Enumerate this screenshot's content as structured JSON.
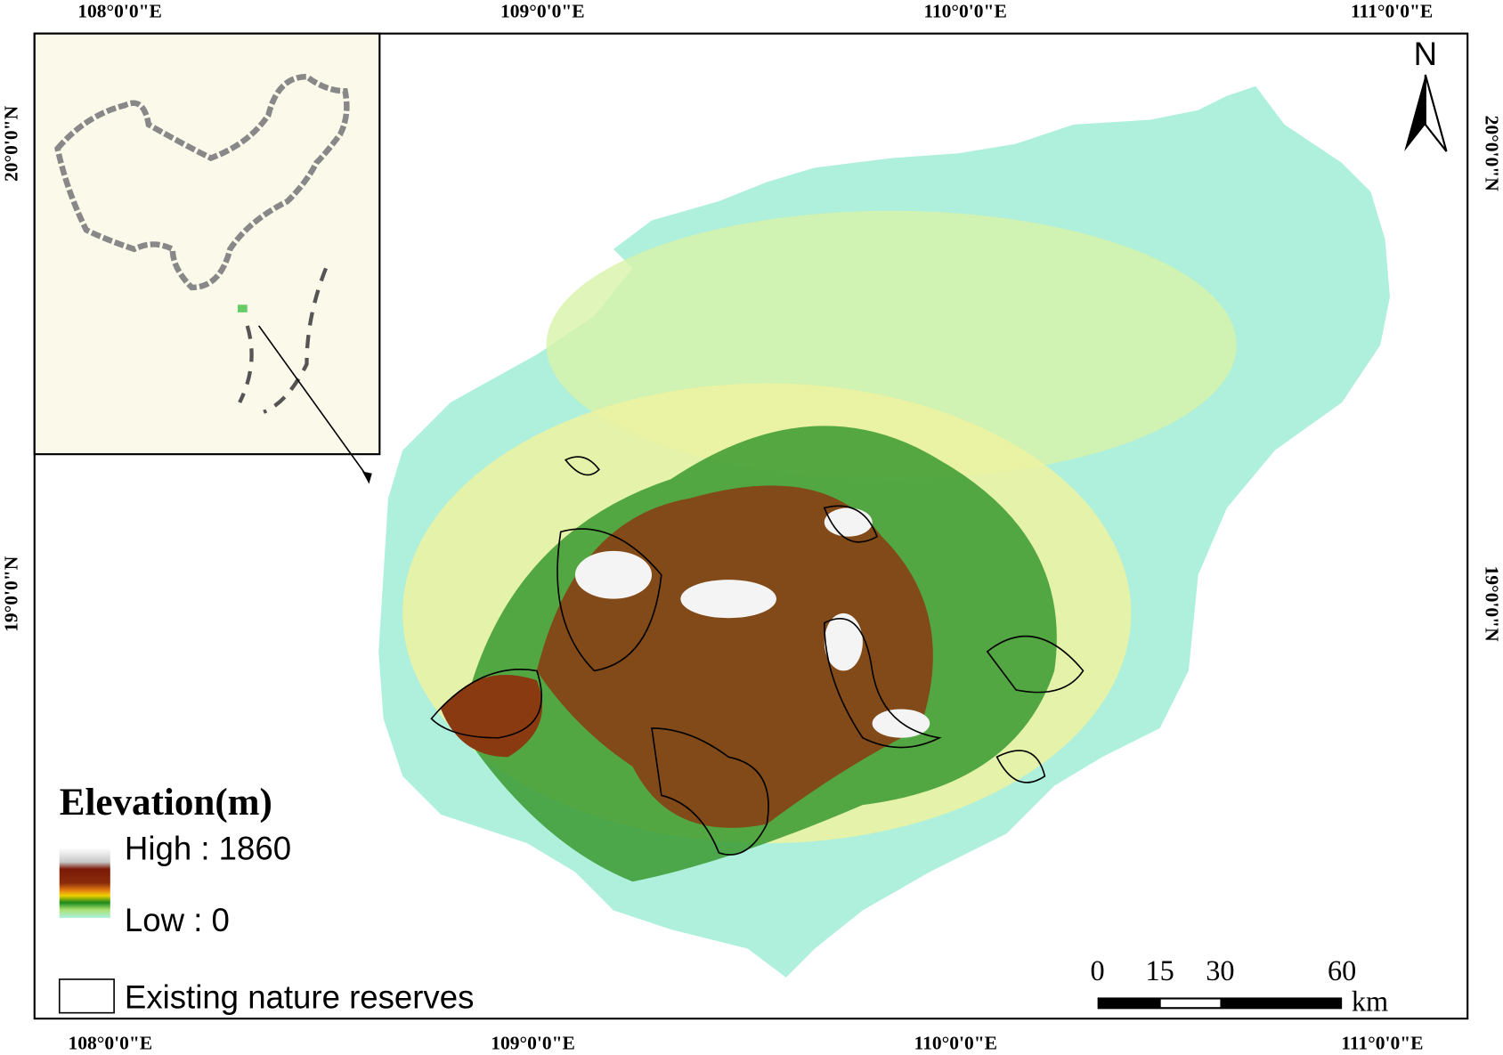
{
  "map": {
    "top_labels": [
      "108°0'0\"E",
      "109°0'0\"E",
      "110°0'0\"E",
      "111°0'0\"E"
    ],
    "bottom_labels": [
      "108°0'0\"E",
      "109°0'0\"E",
      "110°0'0\"E",
      "111°0'0\"E"
    ],
    "left_labels": [
      "20°0'0\"N",
      "19°0'0\"N"
    ],
    "right_labels": [
      "20°0'0\"N",
      "19°0'0\"N"
    ],
    "north": "N",
    "legend": {
      "title": "Elevation(m)",
      "high": "High : 1860",
      "low": "Low : 0",
      "reserves": "Existing nature reserves"
    },
    "scale_bar": {
      "ticks": [
        "0",
        "15",
        "30",
        "60"
      ],
      "unit": "km"
    }
  }
}
